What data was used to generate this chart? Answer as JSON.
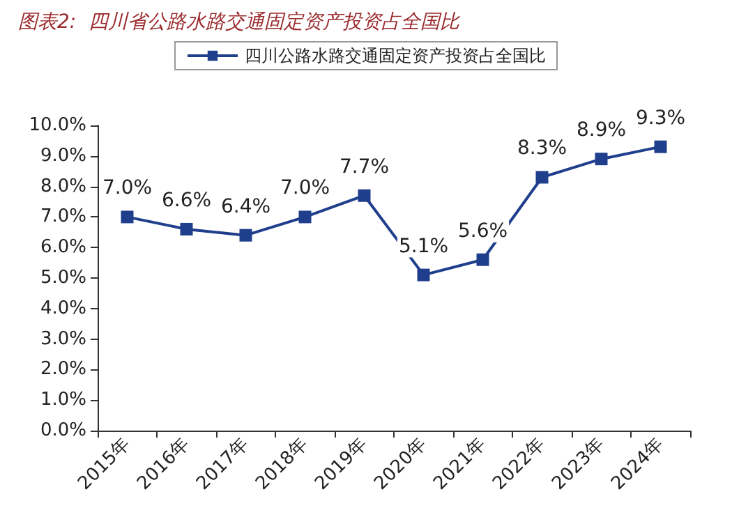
{
  "chart_data": {
    "type": "line",
    "title": "图表2:  四川省公路水路交通固定资产投资占全国比",
    "categories": [
      "2015年",
      "2016年",
      "2017年",
      "2018年",
      "2019年",
      "2020年",
      "2021年",
      "2022年",
      "2023年",
      "2024年"
    ],
    "series": [
      {
        "name": "四川公路水路交通固定资产投资占全国比",
        "color": "#1f3e8c",
        "values": [
          7.0,
          6.6,
          6.4,
          7.0,
          7.7,
          5.1,
          5.6,
          8.3,
          8.9,
          9.3
        ],
        "value_labels": [
          "7.0%",
          "6.6%",
          "6.4%",
          "7.0%",
          "7.7%",
          "5.1%",
          "5.6%",
          "8.3%",
          "8.9%",
          "9.3%"
        ]
      }
    ],
    "ylim": [
      0,
      10
    ],
    "yticks": [
      {
        "value": 0,
        "label": "0.0%"
      },
      {
        "value": 1,
        "label": "1.0%"
      },
      {
        "value": 2,
        "label": "2.0%"
      },
      {
        "value": 3,
        "label": "3.0%"
      },
      {
        "value": 4,
        "label": "4.0%"
      },
      {
        "value": 5,
        "label": "5.0%"
      },
      {
        "value": 6,
        "label": "6.0%"
      },
      {
        "value": 7,
        "label": "7.0%"
      },
      {
        "value": 8,
        "label": "8.0%"
      },
      {
        "value": 9,
        "label": "9.0%"
      },
      {
        "value": 10,
        "label": "10.0%"
      }
    ],
    "legend": "top",
    "marker": "square",
    "line_style": "solid",
    "grid": false
  }
}
